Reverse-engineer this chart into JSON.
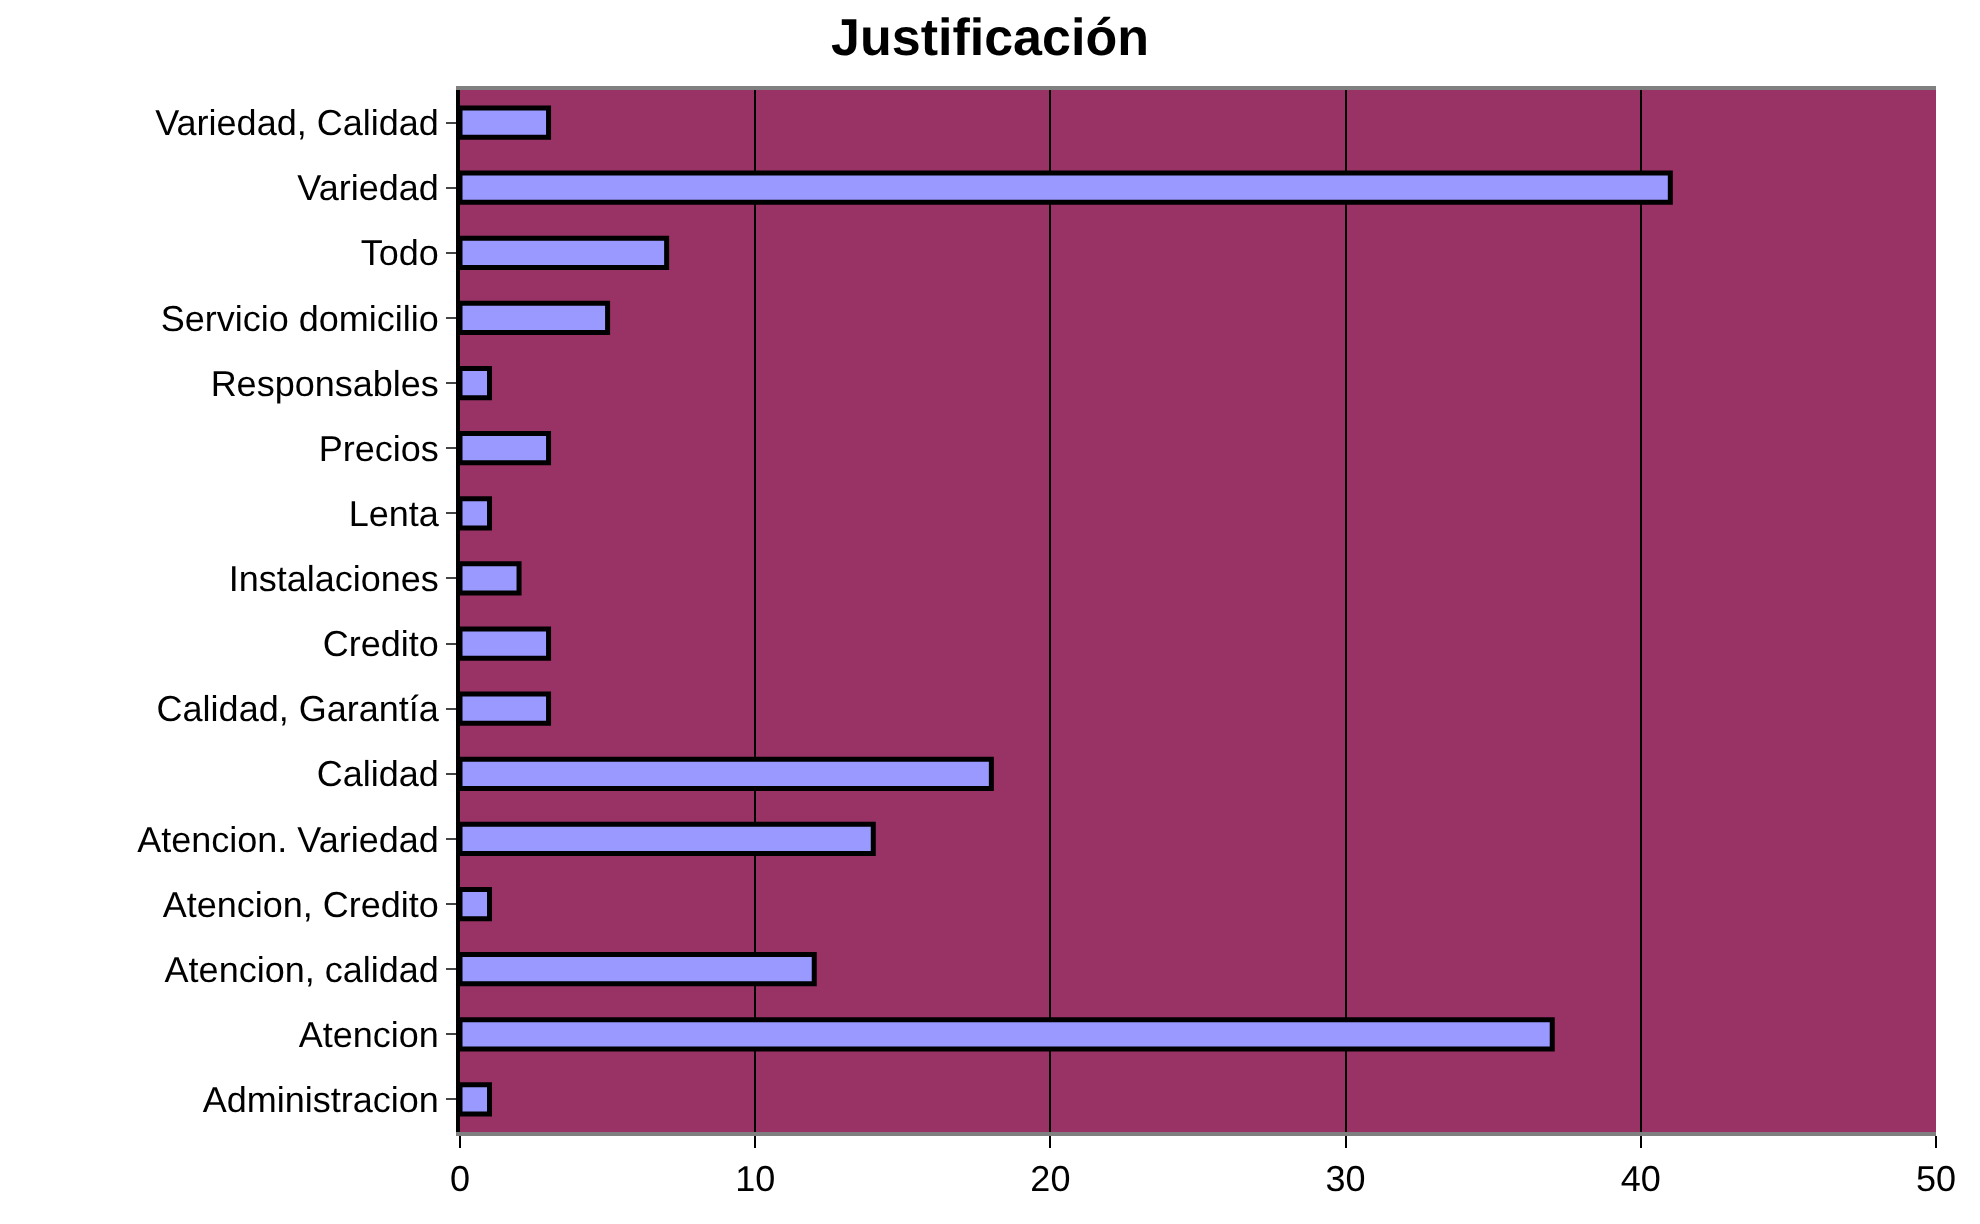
{
  "chart_data": {
    "type": "bar",
    "orientation": "horizontal",
    "title": "Justificación",
    "categories": [
      "Variedad, Calidad",
      "Variedad",
      "Todo",
      "Servicio domicilio",
      "Responsables",
      "Precios",
      "Lenta",
      "Instalaciones",
      "Credito",
      "Calidad, Garantía",
      "Calidad",
      "Atencion. Variedad",
      "Atencion, Credito",
      "Atencion, calidad",
      "Atencion",
      "Administracion"
    ],
    "values": [
      3,
      41,
      7,
      5,
      1,
      3,
      1,
      2,
      3,
      3,
      18,
      14,
      1,
      12,
      37,
      1
    ],
    "color": "#9999ff",
    "xlim": [
      0,
      50
    ],
    "xticks": [
      0,
      10,
      20,
      30,
      40,
      50
    ],
    "grid": "x"
  }
}
